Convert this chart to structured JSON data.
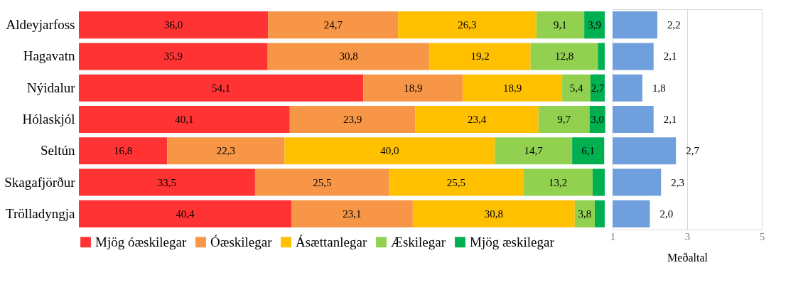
{
  "chart_data": [
    {
      "type": "bar",
      "orientation": "horizontal",
      "stacked": true,
      "legend": "bottom",
      "tick_labels": "y",
      "xlim": [
        0,
        100
      ],
      "categories": [
        "Aldeyjarfoss",
        "Hagavatn",
        "Nýidalur",
        "Hólaskjól",
        "Seltún",
        "Skagafjörður",
        "Trölladyngja"
      ],
      "series": [
        {
          "name": "Mjög óæskilegar",
          "color": "#ff3333",
          "values": [
            36.0,
            35.9,
            54.1,
            40.1,
            16.8,
            33.5,
            40.4
          ],
          "value_labels": [
            "36,0",
            "35,9",
            "54,1",
            "40,1",
            "16,8",
            "33,5",
            "40,4"
          ]
        },
        {
          "name": "Óæskilegar",
          "color": "#f79646",
          "values": [
            24.7,
            30.8,
            18.9,
            23.9,
            22.3,
            25.5,
            23.1
          ],
          "value_labels": [
            "24,7",
            "30,8",
            "18,9",
            "23,9",
            "22,3",
            "25,5",
            "23,1"
          ]
        },
        {
          "name": "Ásættanlegar",
          "color": "#ffc000",
          "values": [
            26.3,
            19.2,
            18.9,
            23.4,
            40.0,
            25.5,
            30.8
          ],
          "value_labels": [
            "26,3",
            "19,2",
            "18,9",
            "23,4",
            "40,0",
            "25,5",
            "30,8"
          ]
        },
        {
          "name": "Æskilegar",
          "color": "#92d050",
          "values": [
            9.1,
            12.8,
            5.4,
            9.7,
            14.7,
            13.2,
            3.8
          ],
          "value_labels": [
            "9,1",
            "12,8",
            "5,4",
            "9,7",
            "14,7",
            "13,2",
            "3,8"
          ]
        },
        {
          "name": "Mjög æskilegar",
          "color": "#00b050",
          "values": [
            3.9,
            1.3,
            2.7,
            3.0,
            6.1,
            2.3,
            1.9
          ],
          "value_labels": [
            "3,9",
            null,
            "2,7",
            "3,0",
            "6,1",
            null,
            null
          ]
        }
      ]
    },
    {
      "type": "bar",
      "orientation": "horizontal",
      "tick_labels": "x",
      "grid": "x",
      "xlabel": "Meðaltal",
      "xlim": [
        1,
        5
      ],
      "xticks": [
        1,
        3,
        5
      ],
      "color": "#6f9fdc",
      "categories": [
        "Aldeyjarfoss",
        "Hagavatn",
        "Nýidalur",
        "Hólaskjól",
        "Seltún",
        "Skagafjörður",
        "Trölladyngja"
      ],
      "values": [
        2.2,
        2.1,
        1.8,
        2.1,
        2.7,
        2.3,
        2.0
      ],
      "value_labels": [
        "2,2",
        "2,1",
        "1,8",
        "2,1",
        "2,7",
        "2,3",
        "2,0"
      ]
    }
  ]
}
